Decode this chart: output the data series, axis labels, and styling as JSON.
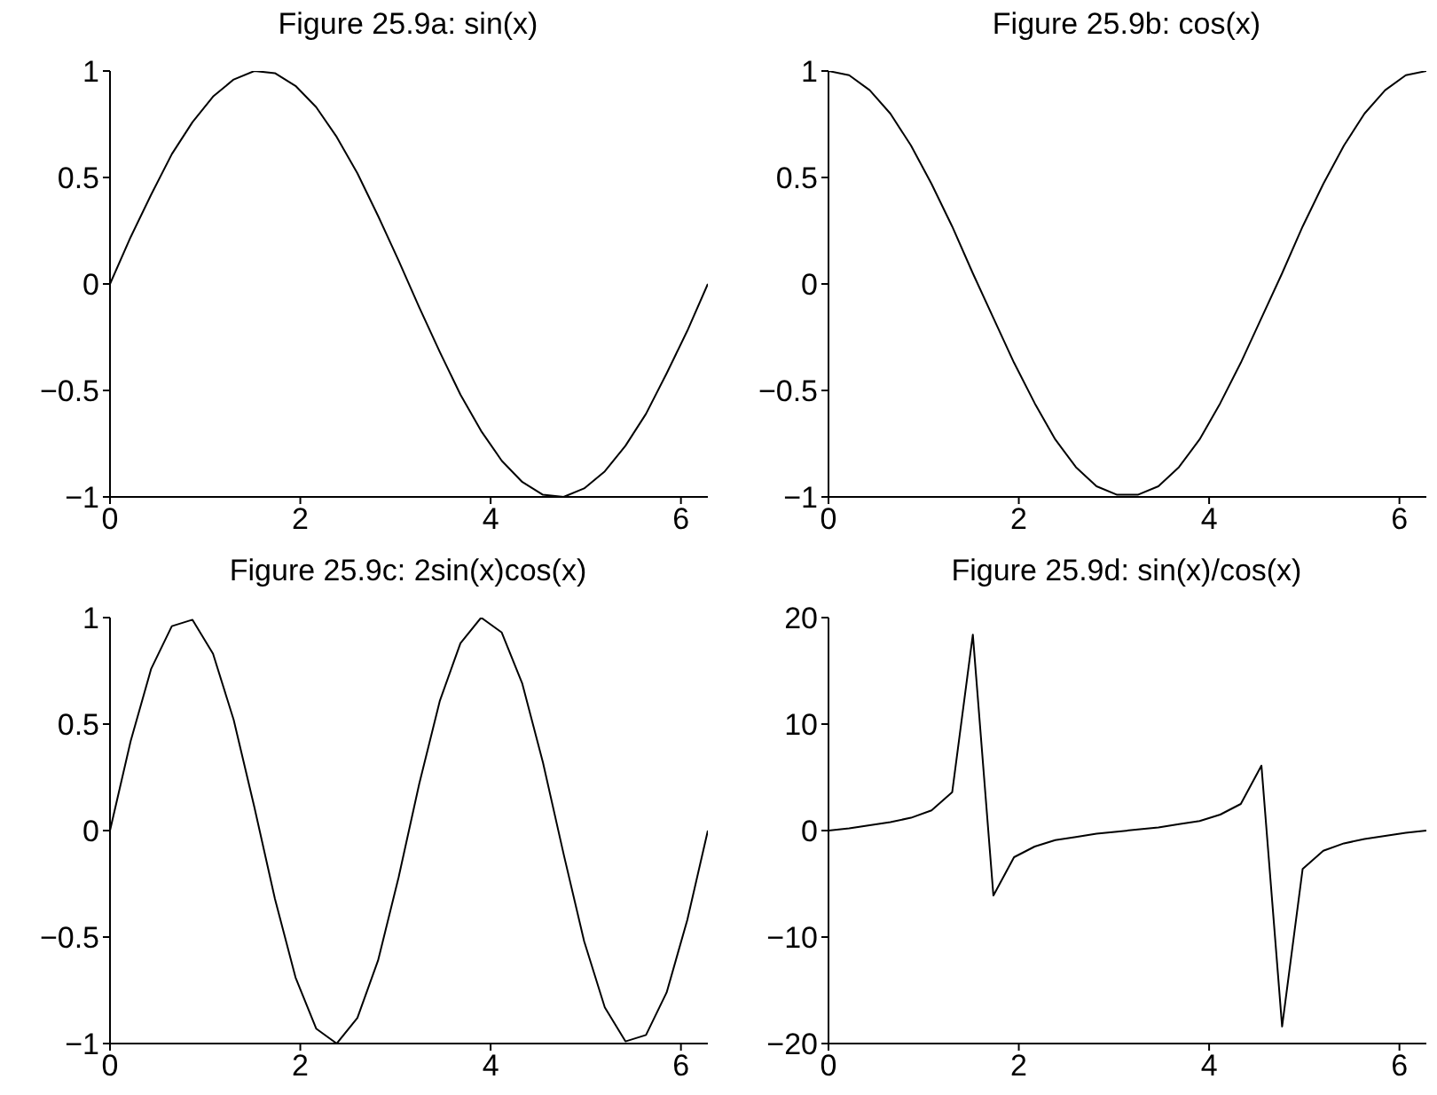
{
  "chart_data": [
    {
      "type": "line",
      "title": "Figure 25.9a: sin(x)",
      "x": [
        0,
        0.217,
        0.433,
        0.65,
        0.867,
        1.083,
        1.3,
        1.517,
        1.733,
        1.95,
        2.167,
        2.383,
        2.6,
        2.817,
        3.033,
        3.25,
        3.467,
        3.683,
        3.9,
        4.117,
        4.333,
        4.55,
        4.767,
        4.983,
        5.2,
        5.417,
        5.633,
        5.85,
        6.067,
        6.283
      ],
      "color": "#000000",
      "values": [
        0,
        0.22,
        0.42,
        0.61,
        0.76,
        0.88,
        0.96,
        1,
        0.99,
        0.93,
        0.83,
        0.69,
        0.52,
        0.32,
        0.11,
        -0.11,
        -0.32,
        -0.52,
        -0.69,
        -0.83,
        -0.93,
        -0.99,
        -1,
        -0.96,
        -0.88,
        -0.76,
        -0.61,
        -0.42,
        -0.22,
        0
      ],
      "xlim": [
        0,
        6.283
      ],
      "ylim": [
        -1,
        1
      ],
      "xticks": [
        0,
        2,
        4,
        6
      ],
      "yticks": [
        -1,
        -0.5,
        0,
        0.5,
        1
      ]
    },
    {
      "type": "line",
      "title": "Figure 25.9b: cos(x)",
      "x": [
        0,
        0.217,
        0.433,
        0.65,
        0.867,
        1.083,
        1.3,
        1.517,
        1.733,
        1.95,
        2.167,
        2.383,
        2.6,
        2.817,
        3.033,
        3.25,
        3.467,
        3.683,
        3.9,
        4.117,
        4.333,
        4.55,
        4.767,
        4.983,
        5.2,
        5.417,
        5.633,
        5.85,
        6.067,
        6.283
      ],
      "color": "#000000",
      "values": [
        1,
        0.98,
        0.91,
        0.8,
        0.65,
        0.47,
        0.27,
        0.05,
        -0.16,
        -0.37,
        -0.56,
        -0.73,
        -0.86,
        -0.95,
        -0.99,
        -0.99,
        -0.95,
        -0.86,
        -0.73,
        -0.56,
        -0.37,
        -0.16,
        0.05,
        0.27,
        0.47,
        0.65,
        0.8,
        0.91,
        0.98,
        1
      ],
      "xlim": [
        0,
        6.283
      ],
      "ylim": [
        -1,
        1
      ],
      "xticks": [
        0,
        2,
        4,
        6
      ],
      "yticks": [
        -1,
        -0.5,
        0,
        0.5,
        1
      ]
    },
    {
      "type": "line",
      "title": "Figure 25.9c: 2sin(x)cos(x)",
      "x": [
        0,
        0.217,
        0.433,
        0.65,
        0.867,
        1.083,
        1.3,
        1.517,
        1.733,
        1.95,
        2.167,
        2.383,
        2.6,
        2.817,
        3.033,
        3.25,
        3.467,
        3.683,
        3.9,
        4.117,
        4.333,
        4.55,
        4.767,
        4.983,
        5.2,
        5.417,
        5.633,
        5.85,
        6.067,
        6.283
      ],
      "color": "#000000",
      "values": [
        0,
        0.42,
        0.76,
        0.96,
        0.99,
        0.83,
        0.52,
        0.11,
        -0.32,
        -0.69,
        -0.93,
        -1,
        -0.88,
        -0.61,
        -0.22,
        0.22,
        0.61,
        0.88,
        1,
        0.93,
        0.69,
        0.32,
        -0.11,
        -0.52,
        -0.83,
        -0.99,
        -0.96,
        -0.76,
        -0.42,
        0
      ],
      "xlim": [
        0,
        6.283
      ],
      "ylim": [
        -1,
        1
      ],
      "xticks": [
        0,
        2,
        4,
        6
      ],
      "yticks": [
        -1,
        -0.5,
        0,
        0.5,
        1
      ]
    },
    {
      "type": "line",
      "title": "Figure 25.9d: sin(x)/cos(x)",
      "x": [
        0,
        0.217,
        0.433,
        0.65,
        0.867,
        1.083,
        1.3,
        1.517,
        1.733,
        1.95,
        2.167,
        2.383,
        2.6,
        2.817,
        3.033,
        3.25,
        3.467,
        3.683,
        3.9,
        4.117,
        4.333,
        4.55,
        4.767,
        4.983,
        5.2,
        5.417,
        5.633,
        5.85,
        6.067,
        6.283
      ],
      "color": "#000000",
      "values": [
        0,
        0.2,
        0.5,
        0.8,
        1.2,
        1.9,
        3.6,
        18.4,
        -6.1,
        -2.5,
        -1.5,
        -0.9,
        -0.6,
        -0.3,
        -0.1,
        0.1,
        0.3,
        0.6,
        0.9,
        1.5,
        2.5,
        6.1,
        -18.4,
        -3.6,
        -1.9,
        -1.2,
        -0.8,
        -0.5,
        -0.2,
        0
      ],
      "xlim": [
        0,
        6.283
      ],
      "ylim": [
        -20,
        20
      ],
      "xticks": [
        0,
        2,
        4,
        6
      ],
      "yticks": [
        -20,
        -10,
        0,
        10,
        20
      ]
    }
  ]
}
